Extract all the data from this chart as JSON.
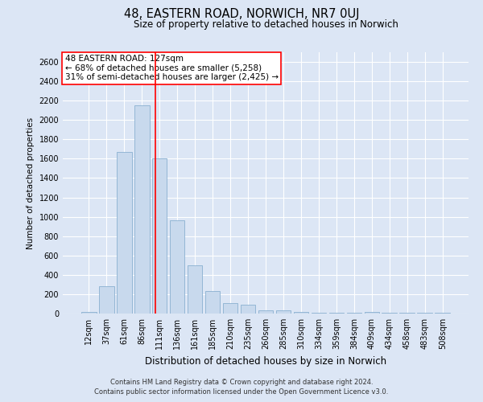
{
  "title": "48, EASTERN ROAD, NORWICH, NR7 0UJ",
  "subtitle": "Size of property relative to detached houses in Norwich",
  "xlabel": "Distribution of detached houses by size in Norwich",
  "ylabel": "Number of detached properties",
  "bar_color": "#c8d9ed",
  "bar_edge_color": "#8ab0d0",
  "categories": [
    "12sqm",
    "37sqm",
    "61sqm",
    "86sqm",
    "111sqm",
    "136sqm",
    "161sqm",
    "185sqm",
    "210sqm",
    "235sqm",
    "260sqm",
    "285sqm",
    "310sqm",
    "334sqm",
    "359sqm",
    "384sqm",
    "409sqm",
    "434sqm",
    "458sqm",
    "483sqm",
    "508sqm"
  ],
  "values": [
    20,
    280,
    1670,
    2150,
    1600,
    960,
    500,
    235,
    110,
    90,
    35,
    30,
    20,
    10,
    5,
    5,
    20,
    5,
    5,
    5,
    5
  ],
  "ylim": [
    0,
    2700
  ],
  "yticks": [
    0,
    200,
    400,
    600,
    800,
    1000,
    1200,
    1400,
    1600,
    1800,
    2000,
    2200,
    2400,
    2600
  ],
  "red_line_x": 3.77,
  "annotation_title": "48 EASTERN ROAD: 127sqm",
  "annotation_line1": "← 68% of detached houses are smaller (5,258)",
  "annotation_line2": "31% of semi-detached houses are larger (2,425) →",
  "footer1": "Contains HM Land Registry data © Crown copyright and database right 2024.",
  "footer2": "Contains public sector information licensed under the Open Government Licence v3.0.",
  "fig_facecolor": "#dce6f5",
  "ax_facecolor": "#dce6f5",
  "grid_color": "#ffffff",
  "title_fontsize": 10.5,
  "subtitle_fontsize": 8.5,
  "xlabel_fontsize": 8.5,
  "ylabel_fontsize": 7.5,
  "tick_fontsize": 7,
  "annot_fontsize": 7.5,
  "footer_fontsize": 6
}
